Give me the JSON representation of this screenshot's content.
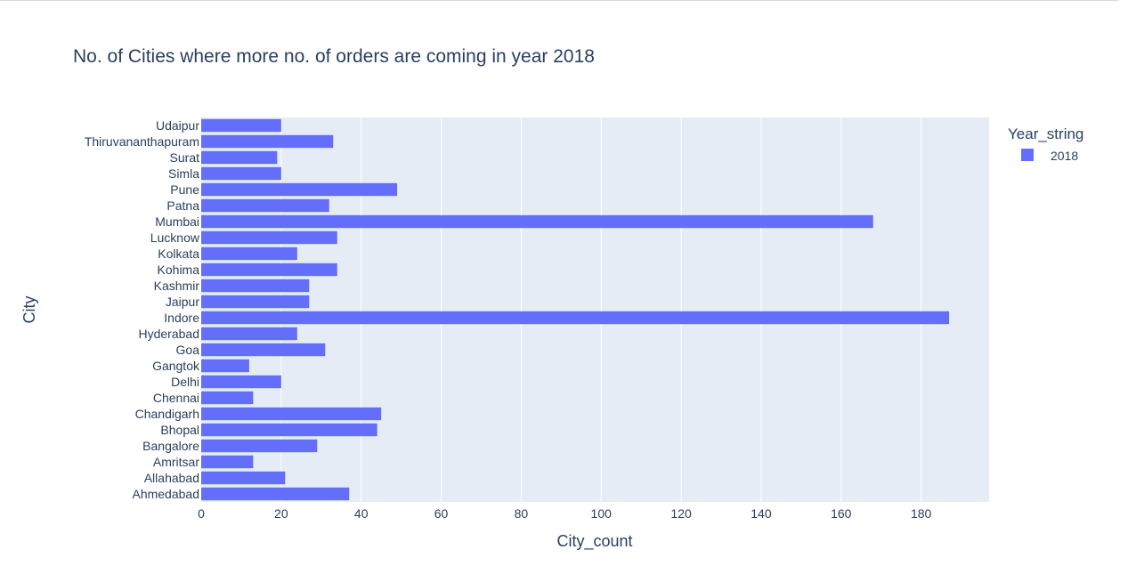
{
  "chart_data": {
    "type": "bar",
    "orientation": "horizontal",
    "title": "No. of Cities where more no. of orders are coming in year 2018",
    "xlabel": "City_count",
    "ylabel": "City",
    "xlim": [
      0,
      197
    ],
    "xticks": [
      0,
      20,
      40,
      60,
      80,
      100,
      120,
      140,
      160,
      180
    ],
    "grid": true,
    "legend": {
      "title": "Year_string",
      "placement": "top-right"
    },
    "categories": [
      "Ahmedabad",
      "Allahabad",
      "Amritsar",
      "Bangalore",
      "Bhopal",
      "Chandigarh",
      "Chennai",
      "Delhi",
      "Gangtok",
      "Goa",
      "Hyderabad",
      "Indore",
      "Jaipur",
      "Kashmir",
      "Kohima",
      "Kolkata",
      "Lucknow",
      "Mumbai",
      "Patna",
      "Pune",
      "Simla",
      "Surat",
      "Thiruvananthapuram",
      "Udaipur"
    ],
    "series": [
      {
        "name": "2018",
        "color": "#636efa",
        "values": [
          37,
          21,
          13,
          29,
          44,
          45,
          13,
          20,
          12,
          31,
          24,
          187,
          27,
          27,
          34,
          24,
          34,
          168,
          32,
          49,
          20,
          19,
          33,
          20
        ]
      }
    ]
  },
  "style": {
    "plot_bg": "#e5ecf6",
    "grid_color": "#ffffff",
    "text_color": "#2a3f5f"
  }
}
